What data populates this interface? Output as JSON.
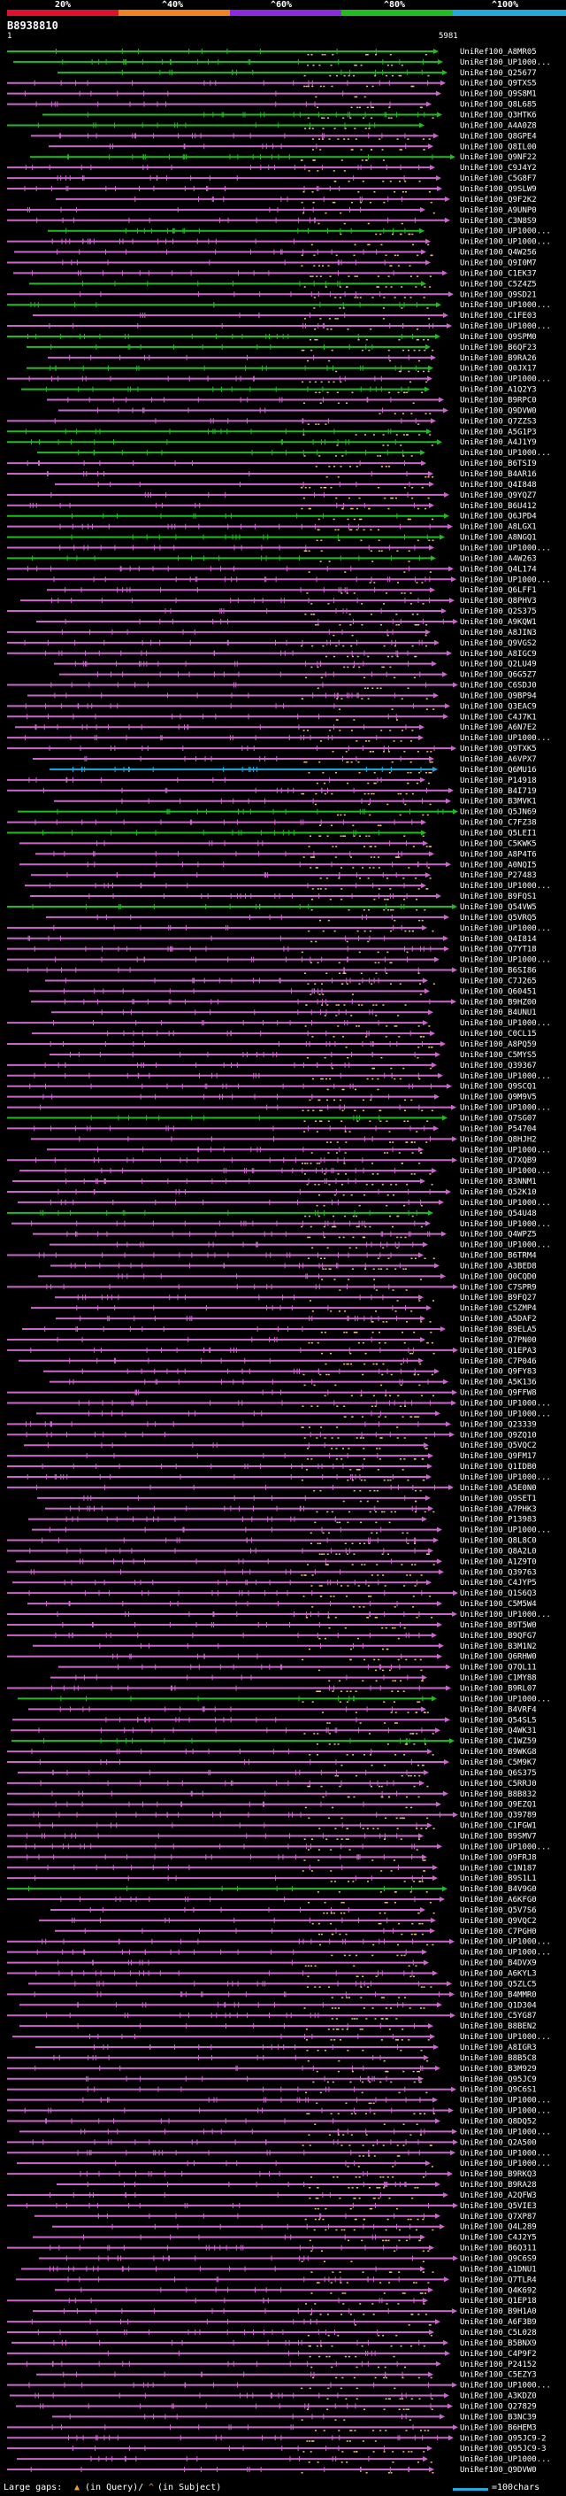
{
  "header": {
    "query_id": "B8938810",
    "query_start": "1",
    "query_end": "5981",
    "percent_labels": [
      "20%",
      "^40%",
      "^60%",
      "^80%",
      "^100%"
    ],
    "scale_colors": [
      "#e0102a",
      "#f08020",
      "#8a2be2",
      "#22bb22",
      "#22aadd"
    ]
  },
  "chart_data": {
    "type": "alignment-map",
    "title": "B8938810",
    "x_range": [
      1,
      5981
    ],
    "identity_color_scale": {
      "20%": "#e0102a",
      "40%": "#f08020",
      "60%": "#8a2be2",
      "80%": "#22bb22",
      "100%": "#22aadd"
    },
    "hits": [
      {
        "label": "UniRef100_A8MR05",
        "color": "#22bb22"
      },
      {
        "label": "UniRef100_UP1000...",
        "color": "#22bb22"
      },
      {
        "label": "UniRef100_Q25677",
        "color": "#22bb22"
      },
      {
        "label": "UniRef100_Q9TXS5",
        "color": "#cc66cc"
      },
      {
        "label": "UniRef100_Q9S8M1",
        "color": "#cc66cc"
      },
      {
        "label": "UniRef100_Q8L685",
        "color": "#cc66cc"
      },
      {
        "label": "UniRef100_Q3HTK6",
        "color": "#22bb22"
      },
      {
        "label": "UniRef100_A4A0Z8",
        "color": "#22bb22"
      },
      {
        "label": "UniRef100_Q8GPE4",
        "color": "#cc66cc"
      },
      {
        "label": "UniRef100_Q8IL00",
        "color": "#cc66cc"
      },
      {
        "label": "UniRef100_Q9NF22",
        "color": "#22bb22"
      },
      {
        "label": "UniRef100_C9J4Y2",
        "color": "#cc66cc"
      },
      {
        "label": "UniRef100_C5G8F7",
        "color": "#cc66cc"
      },
      {
        "label": "UniRef100_Q9SLW9",
        "color": "#cc66cc"
      },
      {
        "label": "UniRef100_Q9F2K2",
        "color": "#cc66cc"
      },
      {
        "label": "UniRef100_A9UNP0",
        "color": "#cc66cc"
      },
      {
        "label": "UniRef100_C3N8S9",
        "color": "#cc66cc"
      },
      {
        "label": "UniRef100_UP1000...",
        "color": "#22bb22"
      },
      {
        "label": "UniRef100_UP1000...",
        "color": "#cc66cc"
      },
      {
        "label": "UniRef100_Q4W256",
        "color": "#cc66cc"
      },
      {
        "label": "UniRef100_Q9I0M7",
        "color": "#cc66cc"
      },
      {
        "label": "UniRef100_C1EK37",
        "color": "#cc66cc"
      },
      {
        "label": "UniRef100_C5Z4Z5",
        "color": "#22bb22"
      },
      {
        "label": "UniRef100_Q9SD21",
        "color": "#cc66cc"
      },
      {
        "label": "UniRef100_UP1000...",
        "color": "#22bb22"
      },
      {
        "label": "UniRef100_C1FE03",
        "color": "#cc66cc"
      },
      {
        "label": "UniRef100_UP1000...",
        "color": "#cc66cc"
      },
      {
        "label": "UniRef100_Q9SPM0",
        "color": "#22bb22"
      },
      {
        "label": "UniRef100_B6QF23",
        "color": "#22bb22"
      },
      {
        "label": "UniRef100_B9RA26",
        "color": "#cc66cc"
      },
      {
        "label": "UniRef100_Q0JX17",
        "color": "#22bb22"
      },
      {
        "label": "UniRef100_UP1000...",
        "color": "#cc66cc"
      },
      {
        "label": "UniRef100_A1Q2Y3",
        "color": "#22bb22"
      },
      {
        "label": "UniRef100_B9RPC0",
        "color": "#cc66cc"
      },
      {
        "label": "UniRef100_Q9DVW0",
        "color": "#cc66cc"
      },
      {
        "label": "UniRef100_Q7ZZS3",
        "color": "#cc66cc"
      },
      {
        "label": "UniRef100_A5G1P3",
        "color": "#22bb22"
      },
      {
        "label": "UniRef100_A4J1Y9",
        "color": "#22bb22"
      },
      {
        "label": "UniRef100_UP1000...",
        "color": "#22bb22"
      },
      {
        "label": "UniRef100_B6TSI9",
        "color": "#cc66cc"
      },
      {
        "label": "UniRef100_B4AR16",
        "color": "#cc66cc"
      },
      {
        "label": "UniRef100_Q4I848",
        "color": "#cc66cc"
      },
      {
        "label": "UniRef100_Q9YQZ7",
        "color": "#cc66cc"
      },
      {
        "label": "UniRef100_B6U412",
        "color": "#cc66cc"
      },
      {
        "label": "UniRef100_Q6JPD4",
        "color": "#22bb22"
      },
      {
        "label": "UniRef100_A8LGX1",
        "color": "#cc66cc"
      },
      {
        "label": "UniRef100_A8NGQ1",
        "color": "#22bb22"
      },
      {
        "label": "UniRef100_UP1000...",
        "color": "#cc66cc"
      },
      {
        "label": "UniRef100_A4W263",
        "color": "#22bb22"
      },
      {
        "label": "UniRef100_Q4L174",
        "color": "#cc66cc"
      },
      {
        "label": "UniRef100_UP1000...",
        "color": "#cc66cc"
      },
      {
        "label": "UniRef100_Q6LFF1",
        "color": "#cc66cc"
      },
      {
        "label": "UniRef100_Q8PHV3",
        "color": "#cc66cc"
      },
      {
        "label": "UniRef100_Q2S375",
        "color": "#cc66cc"
      },
      {
        "label": "UniRef100_A9KQW1",
        "color": "#cc66cc"
      },
      {
        "label": "UniRef100_A8JIN3",
        "color": "#cc66cc"
      },
      {
        "label": "UniRef100_Q9VGS2",
        "color": "#cc66cc"
      },
      {
        "label": "UniRef100_A8IGC9",
        "color": "#cc66cc"
      },
      {
        "label": "UniRef100_Q2LU49",
        "color": "#cc66cc"
      },
      {
        "label": "UniRef100_Q6G5Z7",
        "color": "#cc66cc"
      },
      {
        "label": "UniRef100_C6SDJ0",
        "color": "#cc66cc"
      },
      {
        "label": "UniRef100_Q9BP94",
        "color": "#cc66cc"
      },
      {
        "label": "UniRef100_Q3EAC9",
        "color": "#cc66cc"
      },
      {
        "label": "UniRef100_C4J7K1",
        "color": "#cc66cc"
      },
      {
        "label": "UniRef100_A6N7E2",
        "color": "#cc66cc"
      },
      {
        "label": "UniRef100_UP1000...",
        "color": "#cc66cc"
      },
      {
        "label": "UniRef100_Q9TXK5",
        "color": "#cc66cc"
      },
      {
        "label": "UniRef100_A6VPX7",
        "color": "#cc66cc"
      },
      {
        "label": "UniRef100_Q6MU16",
        "color": "#22aadd"
      },
      {
        "label": "UniRef100_P14918",
        "color": "#cc66cc"
      },
      {
        "label": "UniRef100_B4I719",
        "color": "#cc66cc"
      },
      {
        "label": "UniRef100_B3MVK1",
        "color": "#cc66cc"
      },
      {
        "label": "UniRef100_Q5JN69",
        "color": "#22bb22"
      },
      {
        "label": "UniRef100_C7FZ38",
        "color": "#cc66cc"
      },
      {
        "label": "UniRef100_Q5LEI1",
        "color": "#22bb22"
      },
      {
        "label": "UniRef100_C5KWK5",
        "color": "#cc66cc"
      },
      {
        "label": "UniRef100_A8P4T6",
        "color": "#cc66cc"
      },
      {
        "label": "UniRef100_A0NQI5",
        "color": "#cc66cc"
      },
      {
        "label": "UniRef100_P27483",
        "color": "#cc66cc"
      },
      {
        "label": "UniRef100_UP1000...",
        "color": "#cc66cc"
      },
      {
        "label": "UniRef100_B9FQS1",
        "color": "#cc66cc"
      },
      {
        "label": "UniRef100_Q54VW5",
        "color": "#22bb22"
      },
      {
        "label": "UniRef100_Q5VRQ5",
        "color": "#cc66cc"
      },
      {
        "label": "UniRef100_UP1000...",
        "color": "#cc66cc"
      },
      {
        "label": "UniRef100_Q4I814",
        "color": "#cc66cc"
      },
      {
        "label": "UniRef100_Q7YT18",
        "color": "#cc66cc"
      },
      {
        "label": "UniRef100_UP1000...",
        "color": "#cc66cc"
      },
      {
        "label": "UniRef100_B6SI86",
        "color": "#cc66cc"
      },
      {
        "label": "UniRef100_C7J265",
        "color": "#cc66cc"
      },
      {
        "label": "UniRef100_Q60451",
        "color": "#cc66cc"
      },
      {
        "label": "UniRef100_B9HZ00",
        "color": "#cc66cc"
      },
      {
        "label": "UniRef100_B4UNU1",
        "color": "#cc66cc"
      },
      {
        "label": "UniRef100_UP1000...",
        "color": "#cc66cc"
      },
      {
        "label": "UniRef100_C0CL15",
        "color": "#cc66cc"
      },
      {
        "label": "UniRef100_A8PQ59",
        "color": "#cc66cc"
      },
      {
        "label": "UniRef100_C5MYS5",
        "color": "#cc66cc"
      },
      {
        "label": "UniRef100_Q39367",
        "color": "#cc66cc"
      },
      {
        "label": "UniRef100_UP1000...",
        "color": "#cc66cc"
      },
      {
        "label": "UniRef100_Q9SCQ1",
        "color": "#cc66cc"
      },
      {
        "label": "UniRef100_Q9M9V5",
        "color": "#cc66cc"
      },
      {
        "label": "UniRef100_UP1000...",
        "color": "#cc66cc"
      },
      {
        "label": "UniRef100_Q7SG07",
        "color": "#22bb22"
      },
      {
        "label": "UniRef100_P54704",
        "color": "#cc66cc"
      },
      {
        "label": "UniRef100_Q8HJH2",
        "color": "#cc66cc"
      },
      {
        "label": "UniRef100_UP1000...",
        "color": "#cc66cc"
      },
      {
        "label": "UniRef100_Q7XQB9",
        "color": "#cc66cc"
      },
      {
        "label": "UniRef100_UP1000...",
        "color": "#cc66cc"
      },
      {
        "label": "UniRef100_B3NNM1",
        "color": "#cc66cc"
      },
      {
        "label": "UniRef100_Q52K10",
        "color": "#cc66cc"
      },
      {
        "label": "UniRef100_UP1000...",
        "color": "#cc66cc"
      },
      {
        "label": "UniRef100_Q54U48",
        "color": "#22bb22"
      },
      {
        "label": "UniRef100_UP1000...",
        "color": "#cc66cc"
      },
      {
        "label": "UniRef100_Q4WPZ5",
        "color": "#cc66cc"
      },
      {
        "label": "UniRef100_UP1000...",
        "color": "#cc66cc"
      },
      {
        "label": "UniRef100_B6TRM4",
        "color": "#cc66cc"
      },
      {
        "label": "UniRef100_A3BED8",
        "color": "#cc66cc"
      },
      {
        "label": "UniRef100_Q0CQD0",
        "color": "#cc66cc"
      },
      {
        "label": "UniRef100_C7SPR9",
        "color": "#cc66cc"
      },
      {
        "label": "UniRef100_B9FQ27",
        "color": "#cc66cc"
      },
      {
        "label": "UniRef100_C5ZMP4",
        "color": "#cc66cc"
      },
      {
        "label": "UniRef100_A5DAF2",
        "color": "#cc66cc"
      },
      {
        "label": "UniRef100_B9ELA5",
        "color": "#cc66cc"
      },
      {
        "label": "UniRef100_Q7PN00",
        "color": "#cc66cc"
      },
      {
        "label": "UniRef100_Q1EPA3",
        "color": "#cc66cc"
      },
      {
        "label": "UniRef100_C7P046",
        "color": "#cc66cc"
      },
      {
        "label": "UniRef100_Q9FY83",
        "color": "#cc66cc"
      },
      {
        "label": "UniRef100_A5K136",
        "color": "#cc66cc"
      },
      {
        "label": "UniRef100_Q9FFW8",
        "color": "#cc66cc"
      },
      {
        "label": "UniRef100_UP1000...",
        "color": "#cc66cc"
      },
      {
        "label": "UniRef100_UP1000...",
        "color": "#cc66cc"
      },
      {
        "label": "UniRef100_Q23339",
        "color": "#cc66cc"
      },
      {
        "label": "UniRef100_Q9ZQ10",
        "color": "#cc66cc"
      },
      {
        "label": "UniRef100_Q5VQC2",
        "color": "#cc66cc"
      },
      {
        "label": "UniRef100_Q9FM17",
        "color": "#cc66cc"
      },
      {
        "label": "UniRef100_Q1IDB0",
        "color": "#cc66cc"
      },
      {
        "label": "UniRef100_UP1000...",
        "color": "#cc66cc"
      },
      {
        "label": "UniRef100_A5E0N0",
        "color": "#cc66cc"
      },
      {
        "label": "UniRef100_Q9SET1",
        "color": "#cc66cc"
      },
      {
        "label": "UniRef100_A7PHK3",
        "color": "#cc66cc"
      },
      {
        "label": "UniRef100_P13983",
        "color": "#cc66cc"
      },
      {
        "label": "UniRef100_UP1000...",
        "color": "#cc66cc"
      },
      {
        "label": "UniRef100_Q8L8C0",
        "color": "#cc66cc"
      },
      {
        "label": "UniRef100_Q8A2L0",
        "color": "#cc66cc"
      },
      {
        "label": "UniRef100_A1Z9T0",
        "color": "#cc66cc"
      },
      {
        "label": "UniRef100_Q39763",
        "color": "#cc66cc"
      },
      {
        "label": "UniRef100_C4JYP5",
        "color": "#cc66cc"
      },
      {
        "label": "UniRef100_Q1S6Q3",
        "color": "#cc66cc"
      },
      {
        "label": "UniRef100_C5M5W4",
        "color": "#cc66cc"
      },
      {
        "label": "UniRef100_UP1000...",
        "color": "#cc66cc"
      },
      {
        "label": "UniRef100_B9T5W0",
        "color": "#cc66cc"
      },
      {
        "label": "UniRef100_B9QFG7",
        "color": "#cc66cc"
      },
      {
        "label": "UniRef100_B3M1N2",
        "color": "#cc66cc"
      },
      {
        "label": "UniRef100_Q6RHW0",
        "color": "#cc66cc"
      },
      {
        "label": "UniRef100_Q7QL11",
        "color": "#cc66cc"
      },
      {
        "label": "UniRef100_C1MY88",
        "color": "#cc66cc"
      },
      {
        "label": "UniRef100_B9RL07",
        "color": "#cc66cc"
      },
      {
        "label": "UniRef100_UP1000...",
        "color": "#22bb22"
      },
      {
        "label": "UniRef100_B4VRF4",
        "color": "#cc66cc"
      },
      {
        "label": "UniRef100_Q54SL5",
        "color": "#cc66cc"
      },
      {
        "label": "UniRef100_Q4WK31",
        "color": "#cc66cc"
      },
      {
        "label": "UniRef100_C1WZ59",
        "color": "#22bb22"
      },
      {
        "label": "UniRef100_B9WKG8",
        "color": "#cc66cc"
      },
      {
        "label": "UniRef100_C5M9K7",
        "color": "#cc66cc"
      },
      {
        "label": "UniRef100_Q6S375",
        "color": "#cc66cc"
      },
      {
        "label": "UniRef100_C5RRJ0",
        "color": "#cc66cc"
      },
      {
        "label": "UniRef100_B8B832",
        "color": "#cc66cc"
      },
      {
        "label": "UniRef100_Q9EZQ1",
        "color": "#cc66cc"
      },
      {
        "label": "UniRef100_Q39789",
        "color": "#cc66cc"
      },
      {
        "label": "UniRef100_C1FGW1",
        "color": "#cc66cc"
      },
      {
        "label": "UniRef100_B9SMV7",
        "color": "#cc66cc"
      },
      {
        "label": "UniRef100_UP1000...",
        "color": "#cc66cc"
      },
      {
        "label": "UniRef100_Q9FRJ8",
        "color": "#cc66cc"
      },
      {
        "label": "UniRef100_C1N187",
        "color": "#cc66cc"
      },
      {
        "label": "UniRef100_B9S1L1",
        "color": "#cc66cc"
      },
      {
        "label": "UniRef100_B4V9G0",
        "color": "#22bb22"
      },
      {
        "label": "UniRef100_A6KFG0",
        "color": "#cc66cc"
      },
      {
        "label": "UniRef100_Q5V7S6",
        "color": "#cc66cc"
      },
      {
        "label": "UniRef100_Q9VQC2",
        "color": "#cc66cc"
      },
      {
        "label": "UniRef100_C7PGH0",
        "color": "#cc66cc"
      },
      {
        "label": "UniRef100_UP1000...",
        "color": "#cc66cc"
      },
      {
        "label": "UniRef100_UP1000...",
        "color": "#cc66cc"
      },
      {
        "label": "UniRef100_B4DVX9",
        "color": "#cc66cc"
      },
      {
        "label": "UniRef100_A6KYL3",
        "color": "#cc66cc"
      },
      {
        "label": "UniRef100_Q5ZLC5",
        "color": "#cc66cc"
      },
      {
        "label": "UniRef100_B4MMR0",
        "color": "#cc66cc"
      },
      {
        "label": "UniRef100_Q1D304",
        "color": "#cc66cc"
      },
      {
        "label": "UniRef100_C5YG87",
        "color": "#cc66cc"
      },
      {
        "label": "UniRef100_B8BEN2",
        "color": "#cc66cc"
      },
      {
        "label": "UniRef100_UP1000...",
        "color": "#cc66cc"
      },
      {
        "label": "UniRef100_A8IGR3",
        "color": "#cc66cc"
      },
      {
        "label": "UniRef100_B8B5C8",
        "color": "#cc66cc"
      },
      {
        "label": "UniRef100_B3M929",
        "color": "#cc66cc"
      },
      {
        "label": "UniRef100_Q95JC9",
        "color": "#cc66cc"
      },
      {
        "label": "UniRef100_Q9C6S1",
        "color": "#cc66cc"
      },
      {
        "label": "UniRef100_UP1000...",
        "color": "#cc66cc"
      },
      {
        "label": "UniRef100_UP1000...",
        "color": "#cc66cc"
      },
      {
        "label": "UniRef100_Q8DQ52",
        "color": "#cc66cc"
      },
      {
        "label": "UniRef100_UP1000...",
        "color": "#cc66cc"
      },
      {
        "label": "UniRef100_Q2A500",
        "color": "#cc66cc"
      },
      {
        "label": "UniRef100_UP1000...",
        "color": "#cc66cc"
      },
      {
        "label": "UniRef100_UP1000...",
        "color": "#cc66cc"
      },
      {
        "label": "UniRef100_B9RKQ3",
        "color": "#cc66cc"
      },
      {
        "label": "UniRef100_B9RA28",
        "color": "#cc66cc"
      },
      {
        "label": "UniRef100_A2QFW3",
        "color": "#cc66cc"
      },
      {
        "label": "UniRef100_Q5VIE3",
        "color": "#cc66cc"
      },
      {
        "label": "UniRef100_Q7XP87",
        "color": "#cc66cc"
      },
      {
        "label": "UniRef100_Q4L289",
        "color": "#cc66cc"
      },
      {
        "label": "UniRef100_C4J2Y5",
        "color": "#cc66cc"
      },
      {
        "label": "UniRef100_B6Q311",
        "color": "#cc66cc"
      },
      {
        "label": "UniRef100_Q9C6S9",
        "color": "#cc66cc"
      },
      {
        "label": "UniRef100_A1DNU1",
        "color": "#cc66cc"
      },
      {
        "label": "UniRef100_Q7TLR4",
        "color": "#cc66cc"
      },
      {
        "label": "UniRef100_Q4K692",
        "color": "#cc66cc"
      },
      {
        "label": "UniRef100_Q1EP18",
        "color": "#cc66cc"
      },
      {
        "label": "UniRef100_B9H1A0",
        "color": "#cc66cc"
      },
      {
        "label": "UniRef100_A6F3B9",
        "color": "#cc66cc"
      },
      {
        "label": "UniRef100_C5L028",
        "color": "#cc66cc"
      },
      {
        "label": "UniRef100_B5BNX9",
        "color": "#cc66cc"
      },
      {
        "label": "UniRef100_C4P9F2",
        "color": "#cc66cc"
      },
      {
        "label": "UniRef100_P24152",
        "color": "#cc66cc"
      },
      {
        "label": "UniRef100_C5EZY3",
        "color": "#cc66cc"
      },
      {
        "label": "UniRef100_UP1000...",
        "color": "#cc66cc"
      },
      {
        "label": "UniRef100_A3KDZ0",
        "color": "#cc66cc"
      },
      {
        "label": "UniRef100_Q27829",
        "color": "#cc66cc"
      },
      {
        "label": "UniRef100_B3NC39",
        "color": "#cc66cc"
      },
      {
        "label": "UniRef100_B6HEM3",
        "color": "#cc66cc"
      },
      {
        "label": "UniRef100_Q95JC9-2",
        "color": "#cc66cc"
      },
      {
        "label": "UniRef100_Q95JC9-3",
        "color": "#cc66cc"
      },
      {
        "label": "UniRef100_UP1000...",
        "color": "#cc66cc"
      },
      {
        "label": "UniRef100_Q9DVW0",
        "color": "#cc66cc"
      }
    ]
  },
  "footer": {
    "legend_prefix": "Large gaps:",
    "query_gap_label": "(in Query)/",
    "subject_gap_label": "(in Subject)",
    "scale_label": "=100chars"
  }
}
